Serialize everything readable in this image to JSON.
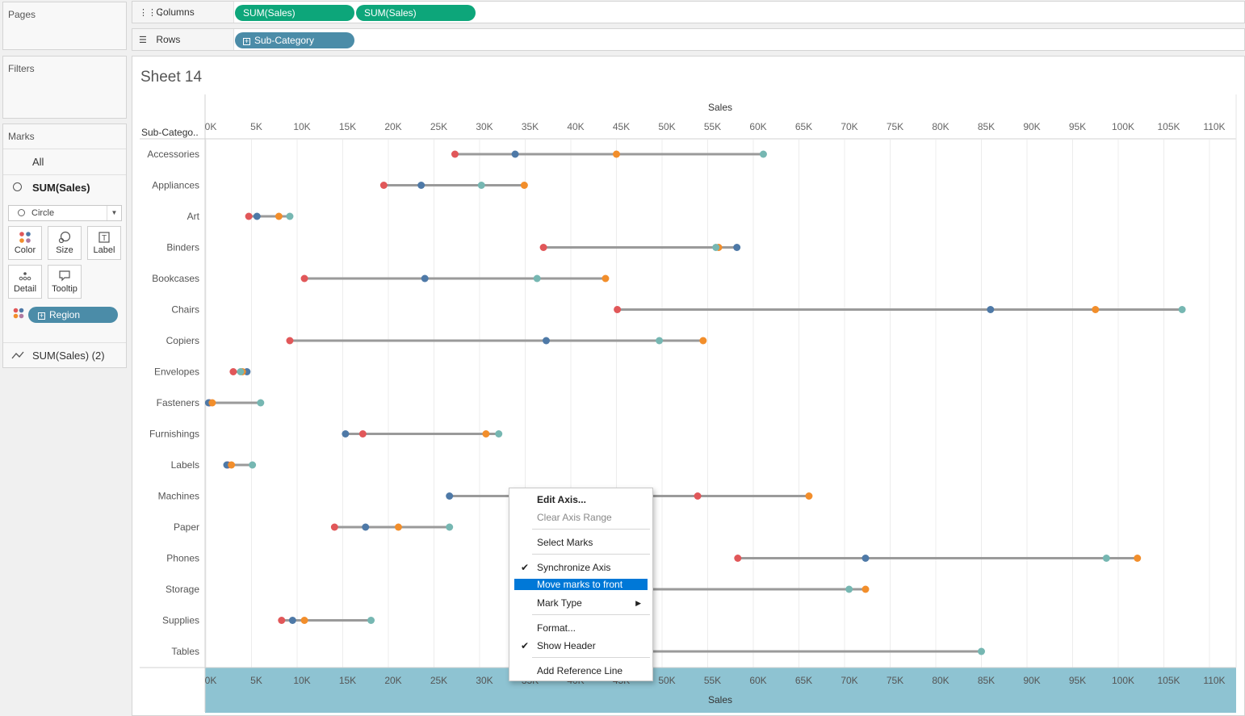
{
  "panels": {
    "pages": "Pages",
    "filters": "Filters",
    "marks": "Marks"
  },
  "shelves": {
    "columns_label": "Columns",
    "rows_label": "Rows",
    "columns_pills": [
      "SUM(Sales)",
      "SUM(Sales)"
    ],
    "rows_pill": "Sub-Category"
  },
  "marks": {
    "all": "All",
    "primary": "SUM(Sales)",
    "mark_type": "Circle",
    "buttons": [
      "Color",
      "Size",
      "Label",
      "Detail",
      "Tooltip"
    ],
    "color_field": "Region",
    "secondary": "SUM(Sales) (2)"
  },
  "sheet": {
    "title": "Sheet 14",
    "row_header": "Sub-Catego.."
  },
  "context_menu": {
    "edit_axis": "Edit Axis...",
    "clear_axis_range": "Clear Axis Range",
    "select_marks": "Select Marks",
    "synchronize_axis": "Synchronize Axis",
    "move_marks_to_front": "Move marks to front",
    "mark_type": "Mark Type",
    "format": "Format...",
    "show_header": "Show Header",
    "add_reference_line": "Add Reference Line"
  },
  "colors": {
    "central": "#e15759",
    "east": "#4e79a7",
    "south": "#f28e2b",
    "west": "#76b7b2",
    "line": "#9a9a9a",
    "bottom_axis_bg": "#8ec3d2",
    "highlight": "#0078d7"
  },
  "chart_data": {
    "type": "scatter",
    "xlabel": "Sales",
    "xlim": [
      0,
      113000
    ],
    "xticks": [
      "0K",
      "5K",
      "10K",
      "15K",
      "20K",
      "25K",
      "30K",
      "35K",
      "40K",
      "45K",
      "50K",
      "55K",
      "60K",
      "65K",
      "70K",
      "75K",
      "80K",
      "85K",
      "90K",
      "95K",
      "100K",
      "105K",
      "110K"
    ],
    "xtick_values": [
      0,
      5000,
      10000,
      15000,
      20000,
      25000,
      30000,
      35000,
      40000,
      45000,
      50000,
      55000,
      60000,
      65000,
      70000,
      75000,
      80000,
      85000,
      90000,
      95000,
      100000,
      105000,
      110000
    ],
    "ylabel": "Sub-Catego..",
    "categories": [
      "Accessories",
      "Appliances",
      "Art",
      "Binders",
      "Bookcases",
      "Chairs",
      "Copiers",
      "Envelopes",
      "Fasteners",
      "Furnishings",
      "Labels",
      "Machines",
      "Paper",
      "Phones",
      "Storage",
      "Supplies",
      "Tables"
    ],
    "series_colors": [
      "#e15759",
      "#4e79a7",
      "#f28e2b",
      "#76b7b2"
    ],
    "series": [
      {
        "values": [
          27300,
          19500,
          4700,
          37000,
          10800,
          45100,
          9200,
          3000,
          400,
          17200,
          2400,
          53900,
          14100,
          58300,
          null,
          8300,
          null
        ]
      },
      {
        "values": [
          33900,
          23600,
          5600,
          58200,
          24000,
          86000,
          37300,
          4500,
          300,
          15300,
          2300,
          26700,
          17500,
          72300,
          null,
          9500,
          null
        ]
      },
      {
        "values": [
          45000,
          34900,
          8000,
          56200,
          43800,
          97500,
          54500,
          4000,
          700,
          30700,
          2800,
          66100,
          21100,
          102100,
          72300,
          10800,
          null
        ]
      },
      {
        "values": [
          61100,
          30200,
          9200,
          55900,
          36300,
          107000,
          49700,
          3800,
          6000,
          32100,
          5100,
          null,
          26700,
          98700,
          70500,
          18100,
          85000
        ]
      }
    ]
  }
}
